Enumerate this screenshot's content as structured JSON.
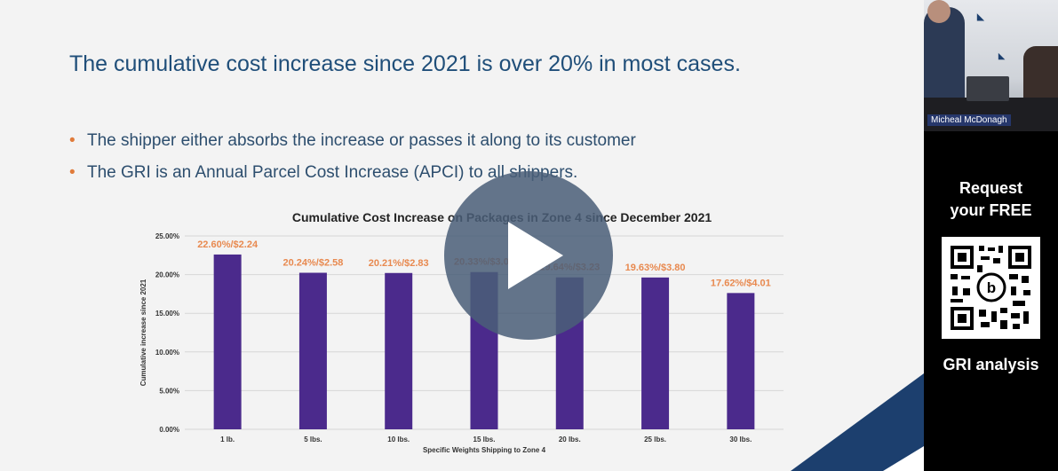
{
  "slide": {
    "title": "The cumulative cost increase since 2021 is over 20% in most cases.",
    "bullets": [
      "The shipper either absorbs the increase or passes it along to its customer",
      "The GRI is an Annual Parcel Cost Increase (APCI) to all shippers."
    ],
    "bullet_glyph": "•",
    "accent_color": "#e07b3a",
    "title_color": "#1f4e79"
  },
  "chart_data": {
    "type": "bar",
    "title": "Cumulative Cost Increase on Packages in Zone 4 since December 2021",
    "xlabel": "Specific Weights Shipping to Zone 4",
    "ylabel": "Cumulative increase since 2021",
    "categories": [
      "1 lb.",
      "5 lbs.",
      "10 lbs.",
      "15 lbs.",
      "20 lbs.",
      "25 lbs.",
      "30 lbs."
    ],
    "values": [
      22.6,
      20.24,
      20.21,
      20.33,
      19.64,
      19.63,
      17.62
    ],
    "data_labels": [
      "22.60%/$2.24",
      "20.24%/$2.58",
      "20.21%/$2.83",
      "20.33%/$3.04",
      "19.64%/$3.23",
      "19.63%/$3.80",
      "17.62%/$4.01"
    ],
    "y_ticks": [
      "0.00%",
      "5.00%",
      "10.00%",
      "15.00%",
      "20.00%",
      "25.00%"
    ],
    "ylim": [
      0,
      25
    ],
    "grid": true,
    "bar_color": "#4b2a8c",
    "label_color": "#e8894f"
  },
  "player": {
    "play_icon": "play-icon"
  },
  "side_panel": {
    "presenter_name": "Micheal McDonagh",
    "promo_line1": "Request",
    "promo_line2": "your FREE",
    "promo_bottom": "GRI analysis",
    "qr_icon": "qr-code-icon"
  }
}
